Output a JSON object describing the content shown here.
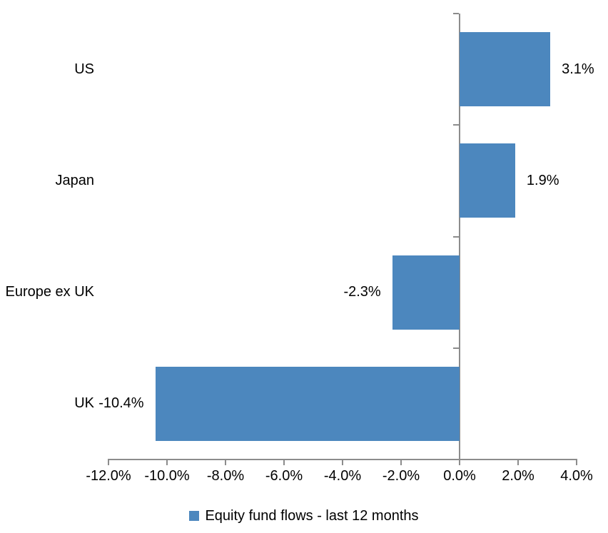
{
  "chart_data": {
    "type": "bar",
    "orientation": "horizontal",
    "title": "",
    "categories": [
      "US",
      "Japan",
      "Europe ex UK",
      "UK"
    ],
    "series": [
      {
        "name": "Equity fund flows - last 12 months",
        "values": [
          3.1,
          1.9,
          -2.3,
          -10.4
        ],
        "value_labels": [
          "3.1%",
          "1.9%",
          "-2.3%",
          "-10.4%"
        ]
      }
    ],
    "xlabel": "",
    "ylabel": "",
    "xlim": [
      -12,
      4
    ],
    "x_tick_step": 2,
    "x_tick_labels": [
      "-12.0%",
      "-10.0%",
      "-8.0%",
      "-6.0%",
      "-4.0%",
      "-2.0%",
      "0.0%",
      "2.0%",
      "4.0%"
    ],
    "grid": false,
    "legend_position": "bottom",
    "colors": {
      "bar": "#4C87BE",
      "axis": "#8C8C8C",
      "text": "#000000",
      "background": "#FFFFFF"
    }
  },
  "legend": {
    "label": "Equity fund flows - last 12 months"
  }
}
